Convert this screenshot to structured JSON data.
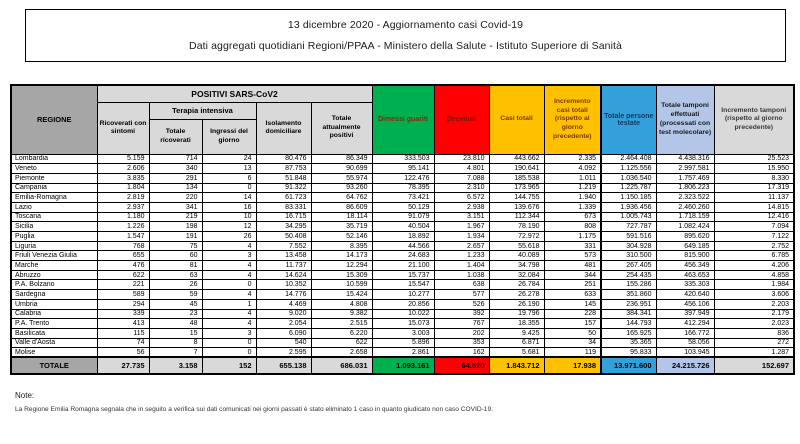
{
  "title": {
    "line1": "13 dicembre 2020 - Aggiornamento casi Covid-19",
    "line2": "Dati aggregati quotidiani Regioni/PPAA - Ministero della Salute - Istituto Superiore di Sanità"
  },
  "colors": {
    "green": "#00B050",
    "red": "#FF0000",
    "gold": "#FFC000",
    "blue": "#33A0DC",
    "light_blue": "#B4C6E7",
    "light_gray": "#D9D9D9",
    "medium_gray": "#A6A6A6"
  },
  "table": {
    "headers": {
      "regione": "REGIONE",
      "positivi_group": "POSITIVI SARS-CoV2",
      "terapia_group": "Terapia intensiva",
      "ricoverati_sintomi": "Ricoverati con sintomi",
      "totale_ricoverati": "Totale ricoverati",
      "ingressi_giorno": "Ingressi del giorno",
      "isolamento": "Isolamento domiciliare",
      "attualmente_positivi": "Totale attualmente positivi",
      "dimessi": "Dimessi guariti",
      "deceduti": "Deceduti",
      "casi_totali": "Casi totali",
      "incremento_casi": "Incremento casi totali (rispetto al giorno precedente)",
      "persone_testate": "Totale persone testate",
      "tamponi": "Totale tamponi effettuati (processati con test molecolare)",
      "incremento_tamponi": "Incremento tamponi (rispetto al giorno precedente)"
    },
    "rows": [
      {
        "region": "Lombardia",
        "values": [
          "5.159",
          "714",
          "24",
          "80.476",
          "86.349",
          "333.503",
          "23.810",
          "443.662",
          "2.335",
          "2.464.408",
          "4.438.316",
          "25.523"
        ]
      },
      {
        "region": "Veneto",
        "values": [
          "2.606",
          "340",
          "13",
          "87.753",
          "90.699",
          "95.141",
          "4.801",
          "190.641",
          "4.092",
          "1.125.556",
          "2.997.581",
          "15.950"
        ]
      },
      {
        "region": "Piemonte",
        "values": [
          "3.835",
          "291",
          "6",
          "51.848",
          "55.974",
          "122.476",
          "7.088",
          "185.538",
          "1.011",
          "1.036.540",
          "1.757.469",
          "8.330"
        ]
      },
      {
        "region": "Campania",
        "values": [
          "1.804",
          "134",
          "0",
          "91.322",
          "93.260",
          "78.395",
          "2.310",
          "173.965",
          "1.219",
          "1.225.787",
          "1.806.223",
          "17.319"
        ]
      },
      {
        "region": "Emilia-Romagna",
        "values": [
          "2.819",
          "220",
          "14",
          "61.723",
          "64.762",
          "73.421",
          "6.572",
          "144.755",
          "1.940",
          "1.150.185",
          "2.323.522",
          "11.137"
        ]
      },
      {
        "region": "Lazio",
        "values": [
          "2.937",
          "341",
          "16",
          "83.331",
          "86.609",
          "50.129",
          "2.938",
          "139.676",
          "1.339",
          "1.936.456",
          "2.460.260",
          "14.815"
        ]
      },
      {
        "region": "Toscana",
        "values": [
          "1.180",
          "219",
          "10",
          "16.715",
          "18.114",
          "91.079",
          "3.151",
          "112.344",
          "673",
          "1.005.743",
          "1.718.159",
          "12.416"
        ]
      },
      {
        "region": "Sicilia",
        "values": [
          "1.226",
          "198",
          "12",
          "34.295",
          "35.719",
          "40.504",
          "1.967",
          "78.190",
          "808",
          "727.787",
          "1.082.424",
          "7.094"
        ]
      },
      {
        "region": "Puglia",
        "values": [
          "1.547",
          "191",
          "26",
          "50.408",
          "52.146",
          "18.892",
          "1.934",
          "72.972",
          "1.175",
          "591.516",
          "895.620",
          "7.122"
        ]
      },
      {
        "region": "Liguria",
        "values": [
          "768",
          "75",
          "4",
          "7.552",
          "8.395",
          "44.566",
          "2.657",
          "55.618",
          "331",
          "304.928",
          "649.185",
          "2.752"
        ]
      },
      {
        "region": "Friuli Venezia Giulia",
        "values": [
          "655",
          "60",
          "3",
          "13.458",
          "14.173",
          "24.683",
          "1.233",
          "40.089",
          "573",
          "310.500",
          "815.900",
          "6.785"
        ]
      },
      {
        "region": "Marche",
        "values": [
          "476",
          "81",
          "4",
          "11.737",
          "12.294",
          "21.100",
          "1.404",
          "34.798",
          "481",
          "267.405",
          "456.349",
          "4.206"
        ]
      },
      {
        "region": "Abruzzo",
        "values": [
          "622",
          "63",
          "4",
          "14.624",
          "15.309",
          "15.737",
          "1.038",
          "32.084",
          "344",
          "254.435",
          "463.653",
          "4.858"
        ]
      },
      {
        "region": "P.A. Bolzano",
        "values": [
          "221",
          "26",
          "0",
          "10.352",
          "10.599",
          "15.547",
          "638",
          "26.784",
          "251",
          "155.286",
          "335.303",
          "1.984"
        ]
      },
      {
        "region": "Sardegna",
        "values": [
          "589",
          "59",
          "4",
          "14.776",
          "15.424",
          "10.277",
          "577",
          "26.278",
          "633",
          "351.860",
          "420.640",
          "3.606"
        ]
      },
      {
        "region": "Umbria",
        "values": [
          "294",
          "45",
          "1",
          "4.469",
          "4.808",
          "20.856",
          "526",
          "26.190",
          "145",
          "236.951",
          "456.106",
          "2.203"
        ]
      },
      {
        "region": "Calabria",
        "values": [
          "339",
          "23",
          "4",
          "9.020",
          "9.382",
          "10.022",
          "392",
          "19.796",
          "228",
          "384.341",
          "397.949",
          "2.179"
        ]
      },
      {
        "region": "P.A. Trento",
        "values": [
          "413",
          "48",
          "4",
          "2.054",
          "2.515",
          "15.073",
          "767",
          "18.355",
          "157",
          "144.793",
          "412.294",
          "2.023"
        ]
      },
      {
        "region": "Basilicata",
        "values": [
          "115",
          "15",
          "3",
          "6.090",
          "6.220",
          "3.003",
          "202",
          "9.425",
          "50",
          "165.925",
          "166.772",
          "836"
        ]
      },
      {
        "region": "Valle d'Aosta",
        "values": [
          "74",
          "8",
          "0",
          "540",
          "622",
          "5.896",
          "353",
          "6.871",
          "34",
          "35.365",
          "58.056",
          "272"
        ]
      },
      {
        "region": "Molise",
        "values": [
          "56",
          "7",
          "0",
          "2.595",
          "2.658",
          "2.861",
          "162",
          "5.681",
          "119",
          "95.833",
          "103.945",
          "1.287"
        ]
      }
    ],
    "total": {
      "label": "TOTALE",
      "values": [
        "27.735",
        "3.158",
        "152",
        "655.138",
        "686.031",
        "1.093.161",
        "64.520",
        "1.843.712",
        "17.938",
        "13.971.600",
        "24.215.726",
        "152.697"
      ]
    }
  },
  "note": {
    "label": "Note:",
    "body": "La Regione Emilia Romagna segnala che in seguito a verifica sui dati comunicati nei giorni passati è stato eliminato 1 caso in quanto giudicato non caso COVID-19."
  }
}
